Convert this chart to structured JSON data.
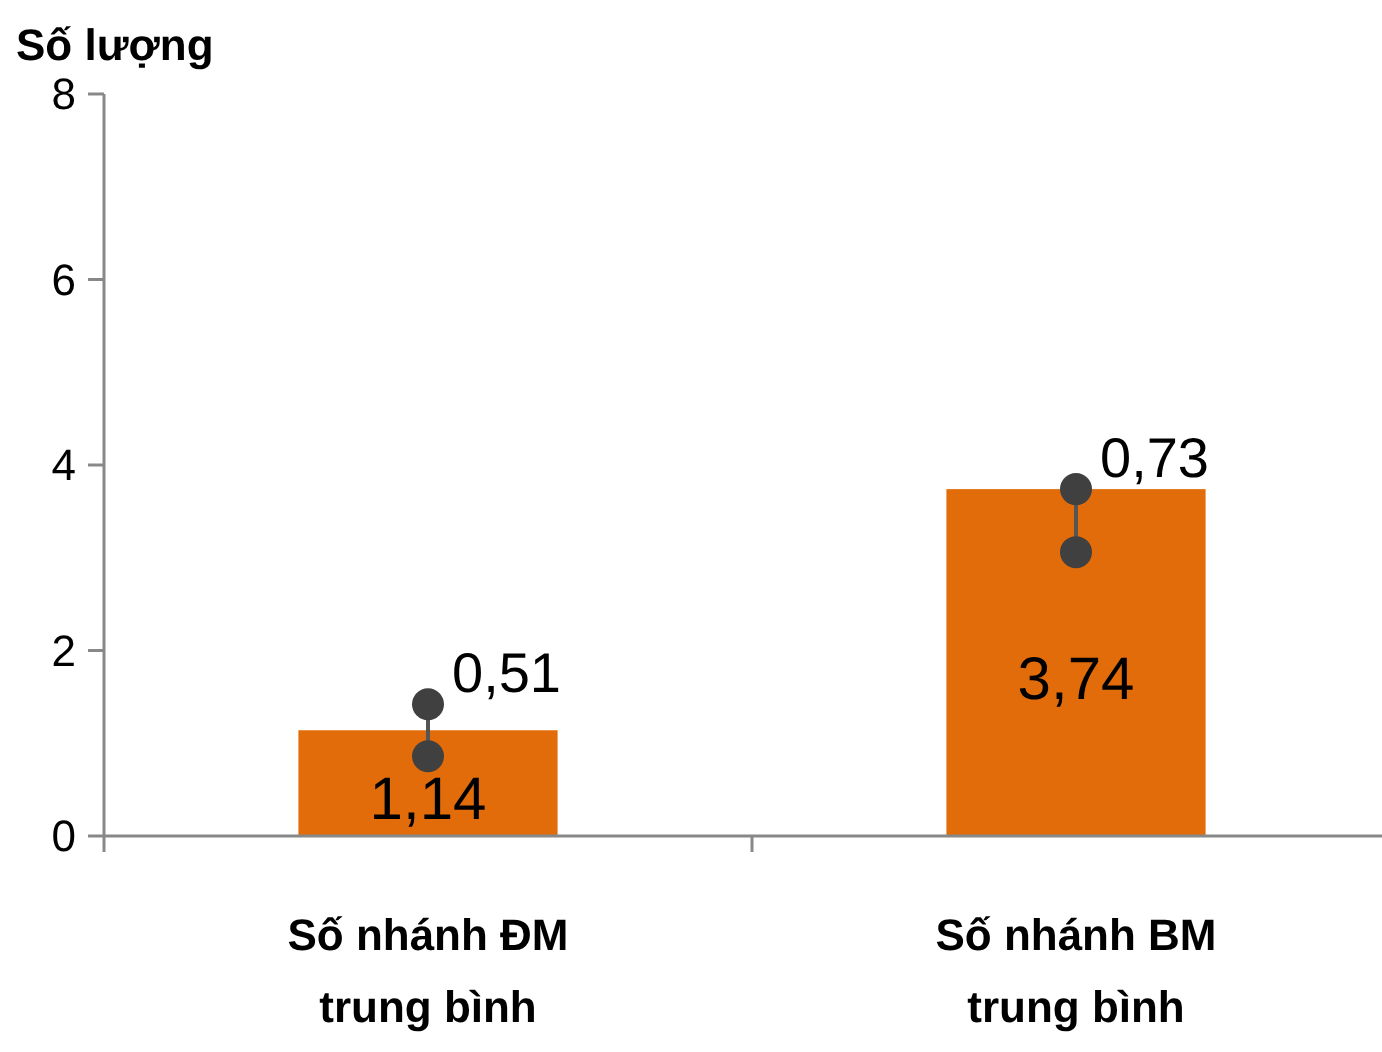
{
  "chart_data": {
    "type": "bar",
    "ylabel": "Số lượng",
    "categories": [
      "Số nhánh ĐM trung bình",
      "Số nhánh BM trung bình"
    ],
    "series": [
      {
        "color": "#e36c0a",
        "values": [
          1.14,
          3.74
        ],
        "value_labels": [
          "1,14",
          "3,74"
        ]
      },
      {
        "type": "scatter",
        "color": "#404040",
        "x": [
          "Số nhánh ĐM trung bình",
          "Số nhánh BM trung bình"
        ],
        "values": [
          1.42,
          3.74
        ]
      },
      {
        "type": "scatter",
        "color": "#404040",
        "x": [
          "Số nhánh ĐM trung bình",
          "Số nhánh BM trung bình"
        ],
        "values": [
          0.86,
          3.06
        ]
      }
    ],
    "marker": "circle",
    "annotations": [
      {
        "text": "0,51",
        "x": "Số nhánh ĐM trung bình",
        "y": 1.42
      },
      {
        "text": "0,73",
        "x": "Số nhánh BM trung bình",
        "y": 3.74
      }
    ],
    "ylim": [
      0,
      8
    ],
    "yticks": [
      0,
      2,
      4,
      6,
      8
    ],
    "grid": false
  }
}
